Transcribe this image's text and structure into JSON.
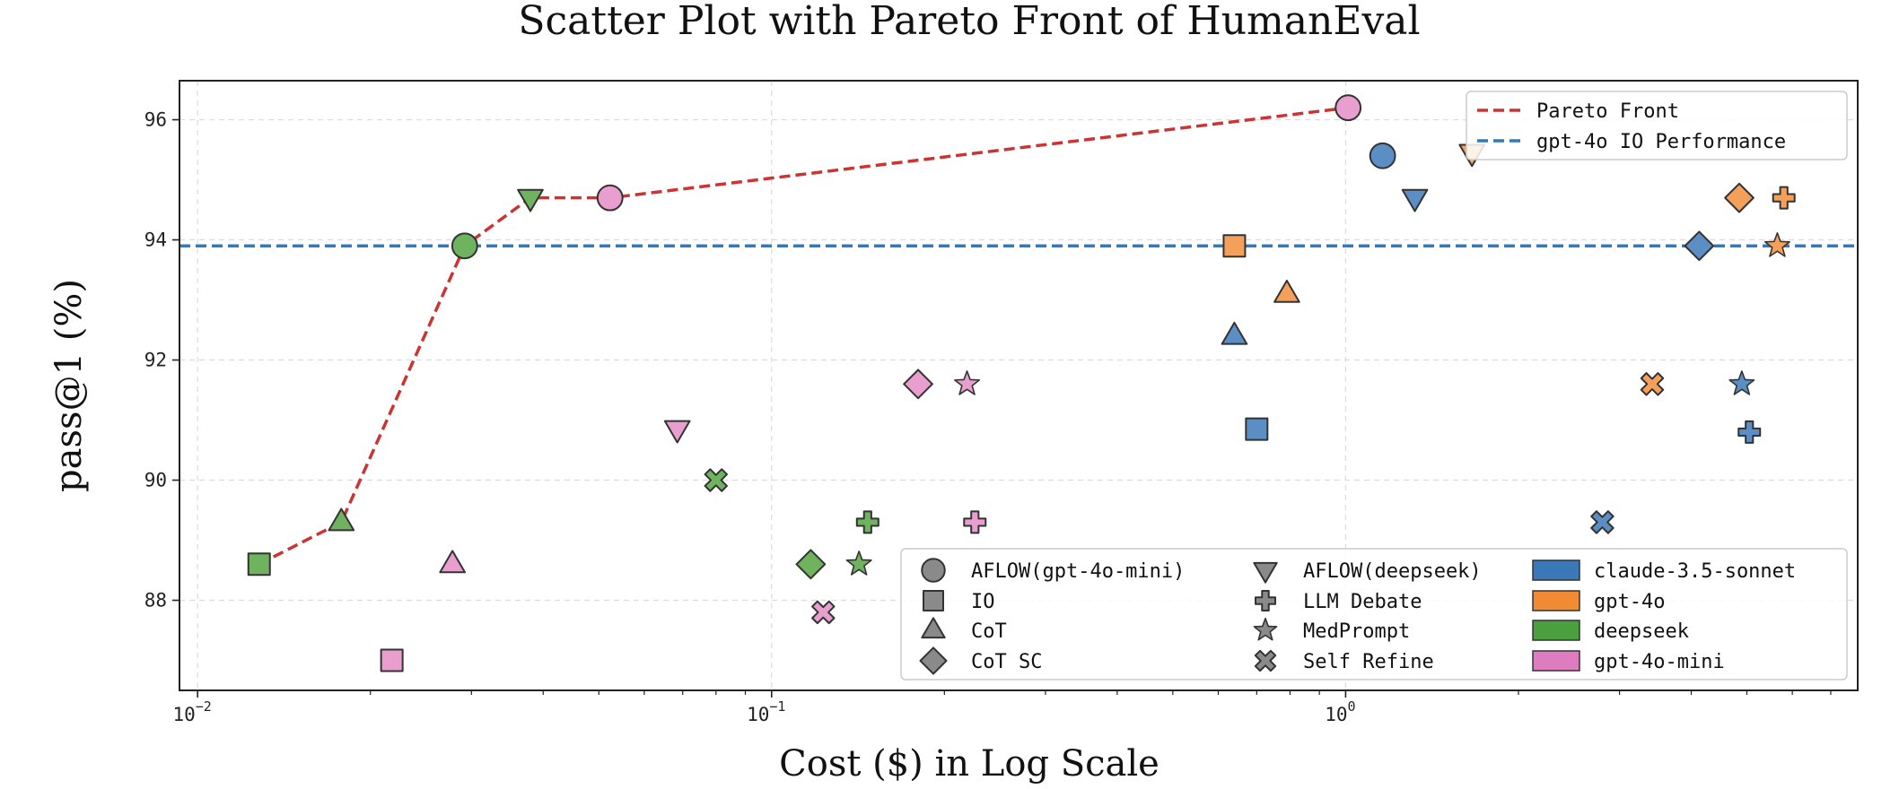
{
  "chart_data": {
    "type": "scatter",
    "title": "Scatter Plot with Pareto Front of HumanEval",
    "xlabel": "Cost ($) in Log Scale",
    "ylabel": "pass@1 (%)",
    "x_scale": "log",
    "xlim": [
      0.0093,
      7.8
    ],
    "ylim": [
      86.5,
      96.65
    ],
    "xticks": [
      {
        "value": 0.01,
        "base": "10",
        "exp": "−2"
      },
      {
        "value": 0.1,
        "base": "10",
        "exp": "−1"
      },
      {
        "value": 1,
        "base": "10",
        "exp": "0"
      }
    ],
    "yticks": [
      88,
      90,
      92,
      94,
      96
    ],
    "grid": true,
    "colors": {
      "claude-3.5-sonnet": "#5b8ec4",
      "gpt-4o": "#f4a05a",
      "deepseek": "#6fb35f",
      "gpt-4o-mini": "#e89fd0"
    },
    "legend_colors": {
      "claude-3.5-sonnet": "#3a78b8",
      "gpt-4o": "#f08a33",
      "deepseek": "#4c9f3f",
      "gpt-4o-mini": "#de7cc0"
    },
    "pareto": {
      "name": "Pareto Front",
      "color": "#cc3333",
      "points": [
        [
          0.0128,
          88.6
        ],
        [
          0.0178,
          89.3
        ],
        [
          0.0292,
          93.9
        ],
        [
          0.038,
          94.7
        ],
        [
          0.0523,
          94.7
        ],
        [
          1.01,
          96.2
        ]
      ]
    },
    "baseline": {
      "name": "gpt-4o IO Performance",
      "value": 93.9,
      "color": "#2f7bbd"
    },
    "points": [
      {
        "method": "AFLOW(gpt-4o-mini)",
        "model": "gpt-4o-mini",
        "x": 1.01,
        "y": 96.2
      },
      {
        "method": "AFLOW(gpt-4o-mini)",
        "model": "claude-3.5-sonnet",
        "x": 1.16,
        "y": 95.4
      },
      {
        "method": "AFLOW(gpt-4o-mini)",
        "model": "deepseek",
        "x": 0.0292,
        "y": 93.9
      },
      {
        "method": "AFLOW(gpt-4o-mini)",
        "model": "gpt-4o-mini",
        "x": 0.0523,
        "y": 94.7
      },
      {
        "method": "AFLOW(deepseek)",
        "model": "deepseek",
        "x": 0.038,
        "y": 94.7
      },
      {
        "method": "AFLOW(deepseek)",
        "model": "gpt-4o-mini",
        "x": 0.0685,
        "y": 90.85
      },
      {
        "method": "AFLOW(deepseek)",
        "model": "claude-3.5-sonnet",
        "x": 1.32,
        "y": 94.7
      },
      {
        "method": "AFLOW(deepseek)",
        "model": "gpt-4o",
        "x": 1.66,
        "y": 95.45
      },
      {
        "method": "IO",
        "model": "deepseek",
        "x": 0.0128,
        "y": 88.6
      },
      {
        "method": "IO",
        "model": "gpt-4o-mini",
        "x": 0.0218,
        "y": 87.0
      },
      {
        "method": "IO",
        "model": "gpt-4o",
        "x": 0.64,
        "y": 93.9
      },
      {
        "method": "IO",
        "model": "claude-3.5-sonnet",
        "x": 0.7,
        "y": 90.85
      },
      {
        "method": "CoT",
        "model": "deepseek",
        "x": 0.0178,
        "y": 89.3
      },
      {
        "method": "CoT",
        "model": "gpt-4o-mini",
        "x": 0.0278,
        "y": 88.6
      },
      {
        "method": "CoT",
        "model": "claude-3.5-sonnet",
        "x": 0.64,
        "y": 92.4
      },
      {
        "method": "CoT",
        "model": "gpt-4o",
        "x": 0.79,
        "y": 93.1
      },
      {
        "method": "CoT SC",
        "model": "deepseek",
        "x": 0.117,
        "y": 88.6
      },
      {
        "method": "CoT SC",
        "model": "gpt-4o-mini",
        "x": 0.18,
        "y": 91.6
      },
      {
        "method": "CoT SC",
        "model": "claude-3.5-sonnet",
        "x": 4.13,
        "y": 93.9
      },
      {
        "method": "CoT SC",
        "model": "gpt-4o",
        "x": 4.85,
        "y": 94.7
      },
      {
        "method": "LLM Debate",
        "model": "deepseek",
        "x": 0.147,
        "y": 89.3
      },
      {
        "method": "LLM Debate",
        "model": "gpt-4o-mini",
        "x": 0.226,
        "y": 89.3
      },
      {
        "method": "LLM Debate",
        "model": "claude-3.5-sonnet",
        "x": 5.05,
        "y": 90.8
      },
      {
        "method": "LLM Debate",
        "model": "gpt-4o",
        "x": 5.8,
        "y": 94.7
      },
      {
        "method": "MedPrompt",
        "model": "deepseek",
        "x": 0.142,
        "y": 88.6
      },
      {
        "method": "MedPrompt",
        "model": "gpt-4o-mini",
        "x": 0.219,
        "y": 91.6
      },
      {
        "method": "MedPrompt",
        "model": "claude-3.5-sonnet",
        "x": 4.9,
        "y": 91.6
      },
      {
        "method": "MedPrompt",
        "model": "gpt-4o",
        "x": 5.65,
        "y": 93.9
      },
      {
        "method": "Self Refine",
        "model": "deepseek",
        "x": 0.08,
        "y": 90.0
      },
      {
        "method": "Self Refine",
        "model": "gpt-4o-mini",
        "x": 0.123,
        "y": 87.8
      },
      {
        "method": "Self Refine",
        "model": "claude-3.5-sonnet",
        "x": 2.8,
        "y": 89.3
      },
      {
        "method": "Self Refine",
        "model": "gpt-4o",
        "x": 3.42,
        "y": 91.6
      }
    ],
    "legend_top": {
      "position": "top-right",
      "entries": [
        "Pareto Front",
        "gpt-4o IO Performance"
      ]
    },
    "legend_bottom": {
      "position": "lower-right",
      "columns": [
        [
          {
            "label": "AFLOW(gpt-4o-mini)",
            "marker": "circle"
          },
          {
            "label": "IO",
            "marker": "square"
          },
          {
            "label": "CoT",
            "marker": "triangle"
          },
          {
            "label": "CoT SC",
            "marker": "diamond"
          }
        ],
        [
          {
            "label": "AFLOW(deepseek)",
            "marker": "triangle-down"
          },
          {
            "label": "LLM Debate",
            "marker": "plus"
          },
          {
            "label": "MedPrompt",
            "marker": "star"
          },
          {
            "label": "Self Refine",
            "marker": "x"
          }
        ],
        [
          {
            "label": "claude-3.5-sonnet",
            "patch": "claude-3.5-sonnet"
          },
          {
            "label": "gpt-4o",
            "patch": "gpt-4o"
          },
          {
            "label": "deepseek",
            "patch": "deepseek"
          },
          {
            "label": "gpt-4o-mini",
            "patch": "gpt-4o-mini"
          }
        ]
      ]
    }
  }
}
